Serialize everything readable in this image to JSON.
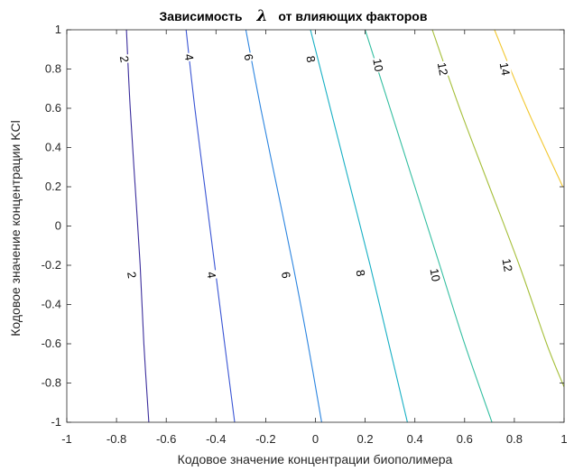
{
  "chart_data": {
    "type": "contour",
    "title": {
      "prefix": "Зависимость",
      "symbol": "λ",
      "suffix": "от влияющих факторов"
    },
    "xlabel": "Кодовое значение концентрации биополимера",
    "ylabel": "Кодовое значение концентрации KCl",
    "xlim": [
      -1,
      1
    ],
    "ylim": [
      -1,
      1
    ],
    "xticks": [
      -1,
      -0.8,
      -0.6,
      -0.4,
      -0.2,
      0,
      0.2,
      0.4,
      0.6,
      0.8,
      1
    ],
    "yticks": [
      -1,
      -0.8,
      -0.6,
      -0.4,
      -0.2,
      0,
      0.2,
      0.4,
      0.6,
      0.8,
      1
    ],
    "xtick_labels": [
      "-1",
      "-0.8",
      "-0.6",
      "-0.4",
      "-0.2",
      "0",
      "0.2",
      "0.4",
      "0.6",
      "0.8",
      "1"
    ],
    "ytick_labels": [
      "-1",
      "-0.8",
      "-0.6",
      "-0.4",
      "-0.2",
      "0",
      "0.2",
      "0.4",
      "0.6",
      "0.8",
      "1"
    ],
    "grid": false,
    "levels": [
      {
        "level": 2,
        "label": "2",
        "color": "#3b2d9c",
        "points": [
          [
            -0.76,
            1
          ],
          [
            -0.745,
            0.6
          ],
          [
            -0.725,
            0.2
          ],
          [
            -0.705,
            -0.2
          ],
          [
            -0.69,
            -0.6
          ],
          [
            -0.67,
            -1
          ]
        ],
        "labels_at": [
          [
            -0.77,
            0.85
          ],
          [
            -0.74,
            -0.25
          ]
        ]
      },
      {
        "level": 4,
        "label": "4",
        "color": "#3a55d4",
        "points": [
          [
            -0.52,
            1
          ],
          [
            -0.485,
            0.6
          ],
          [
            -0.445,
            0.2
          ],
          [
            -0.405,
            -0.2
          ],
          [
            -0.365,
            -0.6
          ],
          [
            -0.325,
            -1
          ]
        ],
        "labels_at": [
          [
            -0.51,
            0.86
          ],
          [
            -0.42,
            -0.25
          ]
        ]
      },
      {
        "level": 6,
        "label": "6",
        "color": "#2c85e0",
        "points": [
          [
            -0.28,
            1
          ],
          [
            -0.22,
            0.6
          ],
          [
            -0.155,
            0.2
          ],
          [
            -0.09,
            -0.2
          ],
          [
            -0.03,
            -0.6
          ],
          [
            0.025,
            -1
          ]
        ],
        "labels_at": [
          [
            -0.27,
            0.86
          ],
          [
            -0.12,
            -0.25
          ]
        ]
      },
      {
        "level": 8,
        "label": "8",
        "color": "#16afc4",
        "points": [
          [
            -0.02,
            1
          ],
          [
            0.06,
            0.6
          ],
          [
            0.14,
            0.2
          ],
          [
            0.22,
            -0.2
          ],
          [
            0.295,
            -0.6
          ],
          [
            0.37,
            -1
          ]
        ],
        "labels_at": [
          [
            -0.02,
            0.85
          ],
          [
            0.18,
            -0.24
          ]
        ]
      },
      {
        "level": 10,
        "label": "10",
        "color": "#32bea0",
        "points": [
          [
            0.2,
            1
          ],
          [
            0.3,
            0.6
          ],
          [
            0.4,
            0.2
          ],
          [
            0.5,
            -0.2
          ],
          [
            0.6,
            -0.6
          ],
          [
            0.71,
            -1
          ]
        ],
        "labels_at": [
          [
            0.25,
            0.82
          ],
          [
            0.48,
            -0.25
          ]
        ]
      },
      {
        "level": 12,
        "label": "12",
        "color": "#a6bf3a",
        "points": [
          [
            0.47,
            1
          ],
          [
            0.58,
            0.6
          ],
          [
            0.7,
            0.2
          ],
          [
            0.82,
            -0.2
          ],
          [
            0.93,
            -0.6
          ],
          [
            1.0,
            -0.82
          ]
        ],
        "labels_at": [
          [
            0.51,
            0.8
          ],
          [
            0.77,
            -0.2
          ]
        ]
      },
      {
        "level": 14,
        "label": "14",
        "color": "#f2c72e",
        "points": [
          [
            0.72,
            1
          ],
          [
            0.85,
            0.6
          ],
          [
            0.995,
            0.2
          ]
        ],
        "labels_at": [
          [
            0.76,
            0.8
          ]
        ]
      }
    ]
  }
}
